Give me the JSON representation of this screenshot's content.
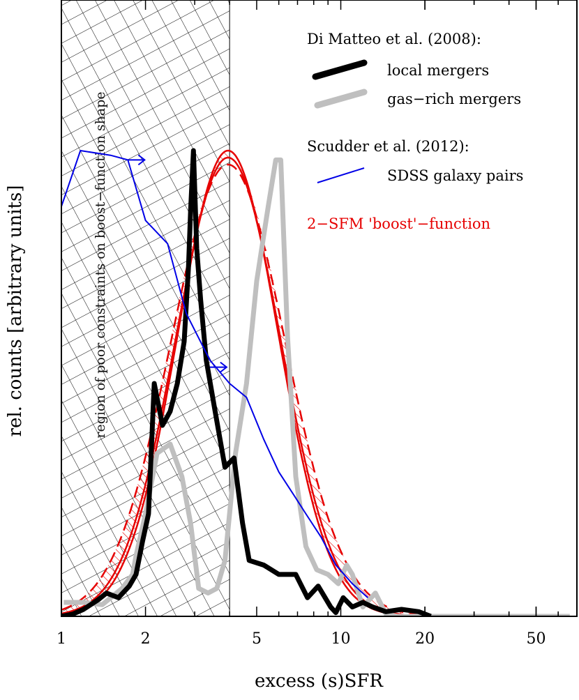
{
  "chart_data": {
    "type": "line",
    "xlabel": "excess (s)SFR",
    "ylabel": "rel. counts [arbitrary units]",
    "xscale": "log",
    "xlim": [
      1,
      70
    ],
    "ylim": [
      0,
      1.0
    ],
    "xticks": [
      1,
      2,
      5,
      10,
      20,
      50
    ],
    "xtick_labels": [
      "1",
      "2",
      "5",
      "10",
      "20",
      "50"
    ],
    "grid": false,
    "legend_location": "top-right",
    "region_annotation": "region of poor constraints on boost−function shape",
    "region_xmax": 4.0,
    "legend": {
      "group1_title": "Di Matteo et al. (2008):",
      "group2_title": "Scudder et al. (2012):",
      "local_mergers": "local mergers",
      "gas_rich_mergers": "gas−rich mergers",
      "sdss_pairs": "SDSS galaxy pairs",
      "boost_function": "2−SFM 'boost'−function"
    },
    "colors": {
      "local_mergers": "#000000",
      "gas_rich_mergers": "#bfbfbf",
      "sdss_pairs": "#0000e6",
      "boost_function": "#e60000"
    },
    "series": [
      {
        "name": "local mergers",
        "x": [
          1.0,
          1.1,
          1.2,
          1.35,
          1.45,
          1.6,
          1.75,
          1.85,
          1.95,
          2.05,
          2.15,
          2.3,
          2.45,
          2.6,
          2.75,
          2.85,
          2.9,
          2.97,
          3.05,
          3.15,
          3.3,
          3.55,
          3.85,
          4.15,
          4.45,
          4.7,
          5.3,
          6.0,
          6.9,
          7.6,
          8.3,
          9.2,
          9.6,
          10.2,
          11.0,
          12.0,
          13.0,
          14.5,
          16.5,
          19.0,
          21.0
        ],
        "y": [
          0.0,
          0.005,
          0.015,
          0.035,
          0.05,
          0.04,
          0.065,
          0.09,
          0.16,
          0.22,
          0.5,
          0.41,
          0.44,
          0.5,
          0.59,
          0.75,
          0.87,
          1.0,
          0.79,
          0.68,
          0.55,
          0.44,
          0.32,
          0.34,
          0.2,
          0.12,
          0.11,
          0.09,
          0.09,
          0.04,
          0.065,
          0.02,
          0.008,
          0.04,
          0.02,
          0.03,
          0.02,
          0.01,
          0.015,
          0.01,
          0.0
        ]
      },
      {
        "name": "gas−rich mergers",
        "x": [
          1.02,
          1.2,
          1.4,
          1.65,
          1.8,
          1.85,
          2.0,
          2.2,
          2.45,
          2.7,
          2.9,
          3.1,
          3.35,
          3.6,
          3.85,
          4.2,
          4.6,
          5.0,
          5.5,
          5.85,
          6.1,
          6.45,
          6.9,
          7.5,
          8.2,
          9.0,
          9.8,
          10.5,
          11.0,
          12.0,
          13.3,
          14.5,
          16.0,
          18.0,
          40.0,
          66.0
        ],
        "y": [
          0.03,
          0.03,
          0.025,
          0.06,
          0.09,
          0.13,
          0.22,
          0.35,
          0.37,
          0.3,
          0.2,
          0.06,
          0.05,
          0.06,
          0.12,
          0.35,
          0.5,
          0.72,
          0.88,
          0.98,
          0.98,
          0.6,
          0.3,
          0.15,
          0.1,
          0.09,
          0.07,
          0.11,
          0.09,
          0.02,
          0.05,
          0.005,
          0.0,
          0.0,
          0.0,
          0.0
        ]
      },
      {
        "name": "SDSS galaxy pairs",
        "x": [
          1.0,
          1.17,
          1.5,
          1.73,
          2.0,
          2.4,
          2.8,
          3.4,
          4.0,
          4.6,
          5.3,
          6.0,
          6.8,
          7.5,
          8.5,
          9.6,
          11.0,
          12.5
        ],
        "y": [
          0.88,
          1.0,
          0.99,
          0.98,
          0.85,
          0.8,
          0.65,
          0.55,
          0.5,
          0.47,
          0.38,
          0.31,
          0.26,
          0.22,
          0.17,
          0.11,
          0.07,
          0.04
        ]
      },
      {
        "name": "2−SFM 'boost'−function",
        "peak_x": 3.95,
        "peak_y": 1.0,
        "width_log10_solid_inner": 0.18,
        "width_log10_dashed": 0.205,
        "xlim_curves": [
          1.0,
          70
        ]
      }
    ],
    "arrows": [
      {
        "series": "SDSS galaxy pairs",
        "x": 1.73,
        "y": 0.98,
        "direction": "right"
      },
      {
        "series": "SDSS galaxy pairs",
        "x": 3.4,
        "y": 0.535,
        "direction": "right"
      }
    ]
  }
}
